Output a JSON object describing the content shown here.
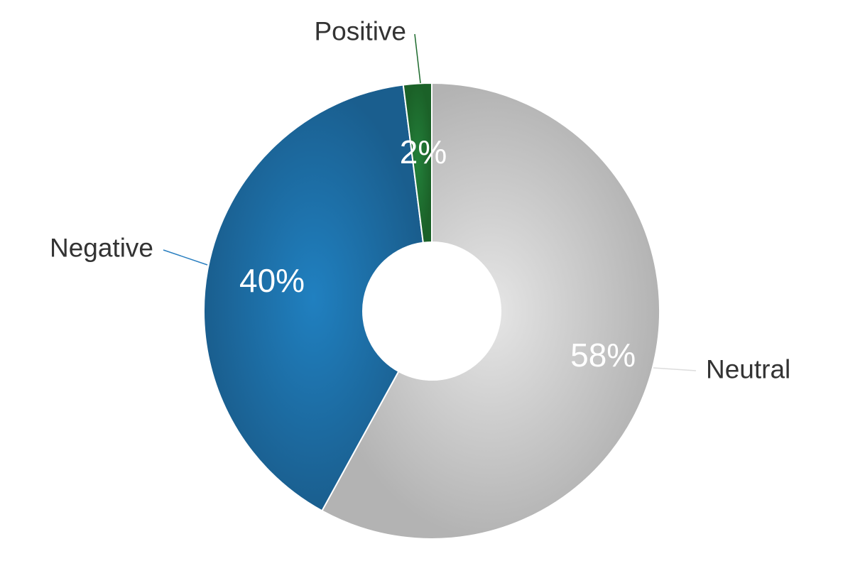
{
  "chart_data": {
    "type": "pie",
    "donut": true,
    "title": "",
    "categories": [
      "Neutral",
      "Negative",
      "Positive"
    ],
    "values": [
      58,
      40,
      2
    ],
    "value_labels": [
      "58%",
      "40%",
      "2%"
    ],
    "colors": {
      "Neutral": "#bdbdbd",
      "Negative": "#1f6fa8",
      "Positive": "#1e6b2e"
    },
    "leader_colors": {
      "Neutral": "#dddddd",
      "Negative": "#2a7fc0",
      "Positive": "#1e6b2e"
    },
    "legend": "none",
    "start_angle_deg": 0,
    "direction": "clockwise"
  }
}
